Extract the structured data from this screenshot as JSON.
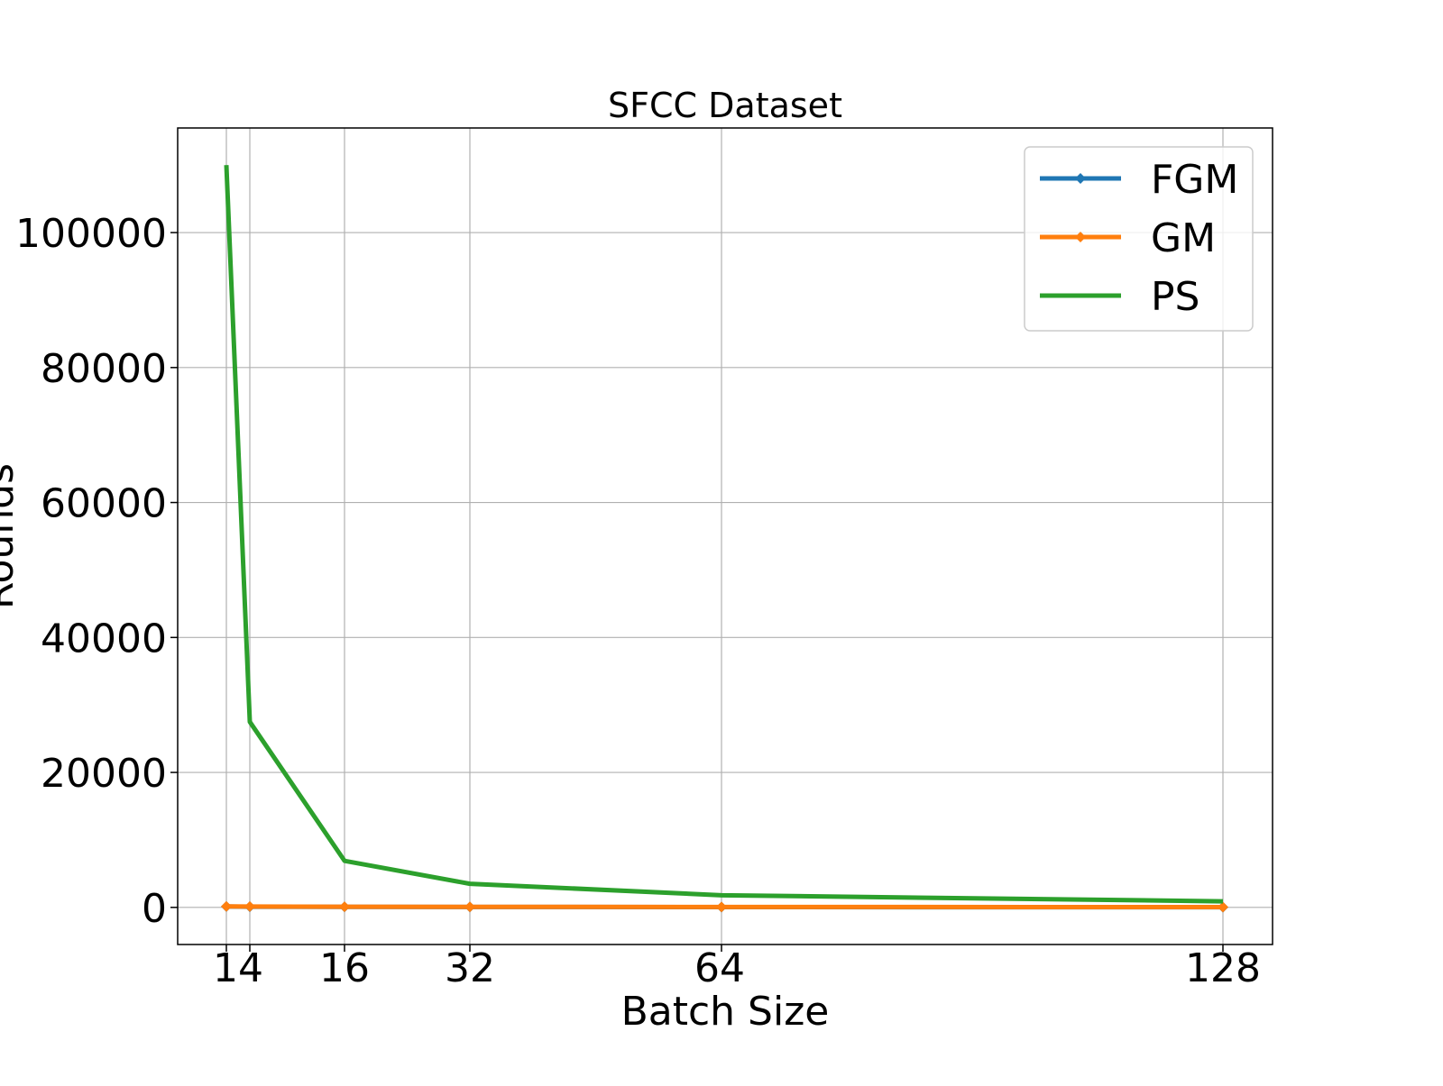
{
  "chart_data": {
    "type": "line",
    "title": "SFCC Dataset",
    "xlabel": "Batch Size",
    "ylabel": "Rounds",
    "x": [
      12,
      14,
      16,
      32,
      64,
      128
    ],
    "x_tick_labels": [
      "14",
      "16",
      "32",
      "64",
      "128"
    ],
    "x_tick_values": [
      14,
      16,
      32,
      64,
      128
    ],
    "x_tick_label_offsets_note": "",
    "x_grid_values": [
      12,
      14,
      16,
      32,
      64,
      128
    ],
    "y_ticks": [
      0,
      20000,
      40000,
      60000,
      80000,
      100000
    ],
    "y_tick_labels": [
      "0",
      "20000",
      "40000",
      "60000",
      "80000",
      "100000"
    ],
    "ylim": [
      -5500,
      115500
    ],
    "grid": true,
    "legend_position": "top-right",
    "series": [
      {
        "name": "FGM",
        "color": "#1f77b4",
        "marker": "diamond",
        "values": [
          120,
          100,
          80,
          60,
          40,
          20
        ]
      },
      {
        "name": "GM",
        "color": "#ff7f0e",
        "marker": "diamond",
        "values": [
          150,
          130,
          100,
          80,
          60,
          40
        ]
      },
      {
        "name": "PS",
        "color": "#2ca02c",
        "marker": "none",
        "values": [
          110000,
          27500,
          6900,
          3500,
          1800,
          900
        ]
      }
    ]
  }
}
